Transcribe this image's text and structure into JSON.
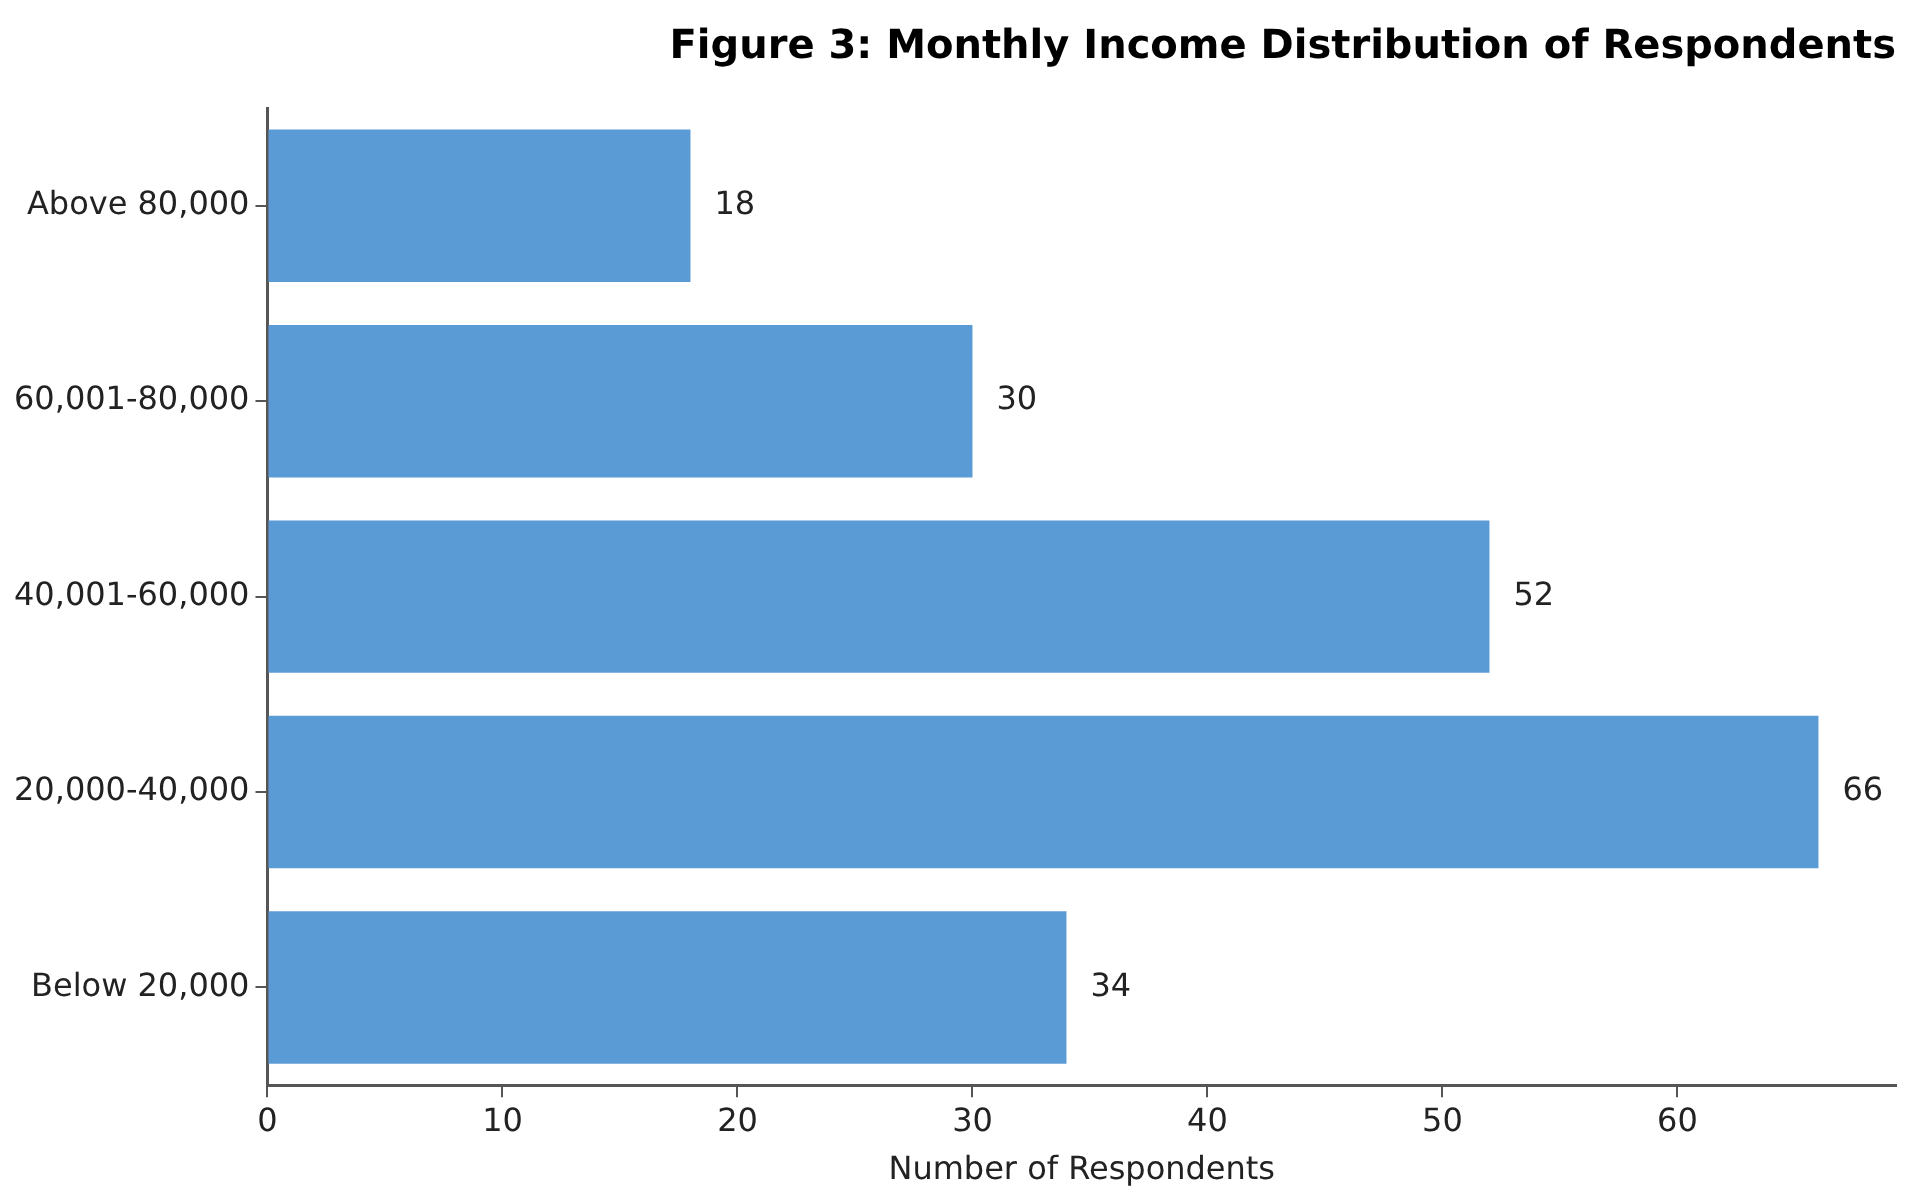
{
  "chart_data": {
    "type": "bar",
    "orientation": "horizontal",
    "title": "Figure 3: Monthly Income Distribution of Respondents",
    "xlabel": "Number of Respondents",
    "categories": [
      "Above 80,000",
      "60,001-80,000",
      "40,001-60,000",
      "20,000-40,000",
      "Below 20,000"
    ],
    "values": [
      18,
      30,
      52,
      66,
      34
    ],
    "color": "#5b9bd5",
    "xlim": [
      0,
      69.3
    ],
    "xticks": [
      0,
      10,
      20,
      30,
      40,
      50,
      60
    ],
    "grid": false,
    "legend": false,
    "data_labels": true
  }
}
